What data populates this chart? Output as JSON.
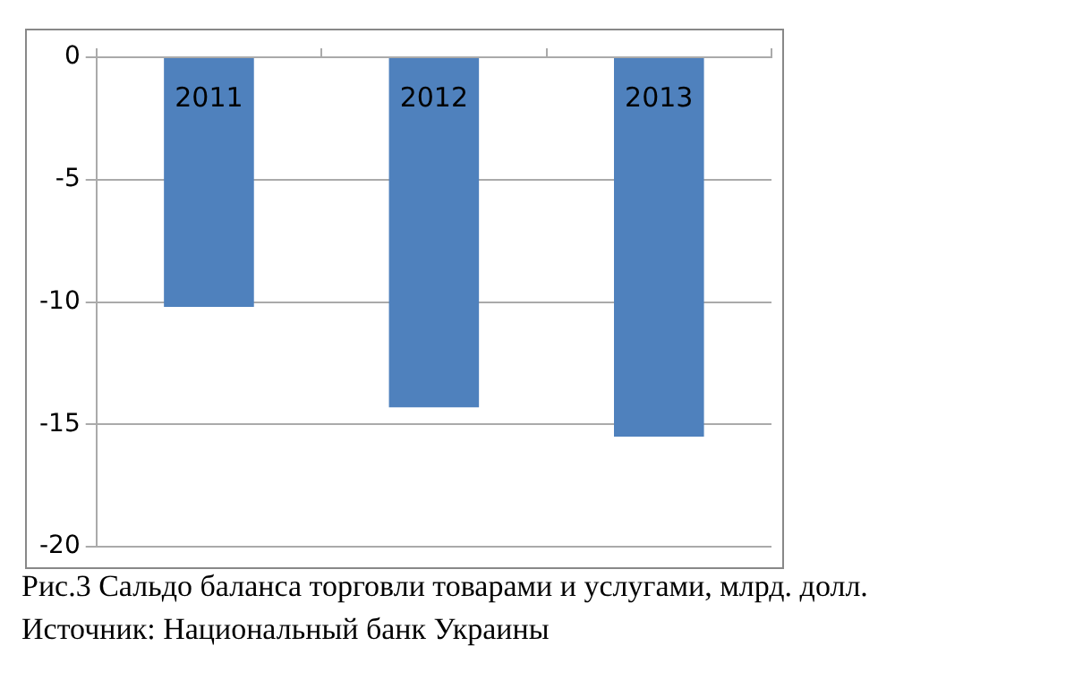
{
  "chart_data": {
    "type": "bar",
    "categories": [
      "2011",
      "2012",
      "2013"
    ],
    "values": [
      -10.2,
      -14.3,
      -15.5
    ],
    "color": "#4f81bd",
    "ylim": [
      -20,
      0
    ],
    "yticks": [
      -20,
      -15,
      -10,
      -5,
      0
    ],
    "grid": "y",
    "legend": false,
    "annotations": [
      "Рис.3 Сальдо баланса торговли товарами и услугами, млрд. долл.",
      "Источник: Национальный банк Украины"
    ]
  }
}
